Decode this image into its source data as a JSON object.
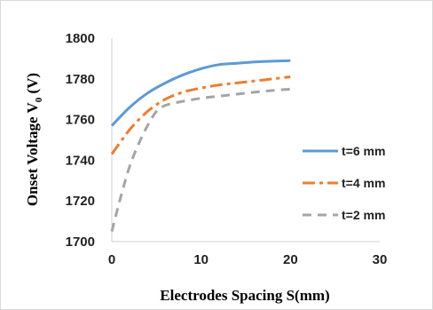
{
  "chart_data": {
    "type": "line",
    "title": "",
    "xlabel": "Electrodes Spacing S(mm)",
    "ylabel": "Onset Voltage V",
    "ylabel_sub": "0",
    "ylabel_unit": " (V)",
    "xlim": [
      0,
      30
    ],
    "ylim": [
      1700,
      1800
    ],
    "x_ticks": [
      0,
      10,
      20,
      30
    ],
    "y_ticks": [
      1700,
      1720,
      1740,
      1760,
      1780,
      1800
    ],
    "grid": false,
    "legend_position": "right",
    "series": [
      {
        "name": "t=6 mm",
        "color": "#5b9bd5",
        "dash": "solid",
        "x": [
          0,
          2,
          4,
          6,
          8,
          10,
          12,
          14,
          16,
          18,
          20
        ],
        "y": [
          1757,
          1766,
          1773,
          1778,
          1782,
          1785,
          1787,
          1787.7,
          1788.3,
          1788.7,
          1789
        ]
      },
      {
        "name": "t=4 mm",
        "color": "#ed7d31",
        "dash": "dashdot",
        "x": [
          0,
          2,
          4,
          6,
          8,
          10,
          12,
          14,
          16,
          18,
          20
        ],
        "y": [
          1743,
          1755,
          1764,
          1770,
          1773.5,
          1775.5,
          1777,
          1778,
          1779,
          1780,
          1781
        ]
      },
      {
        "name": "t=2 mm",
        "color": "#a5a5a5",
        "dash": "dash",
        "x": [
          0,
          1,
          2,
          3,
          4,
          5,
          6,
          8,
          10,
          12,
          14,
          16,
          18,
          20
        ],
        "y": [
          1705,
          1722,
          1737,
          1748,
          1757,
          1764,
          1767,
          1769,
          1770.5,
          1771.5,
          1772.5,
          1773.5,
          1774.3,
          1775
        ]
      }
    ]
  }
}
